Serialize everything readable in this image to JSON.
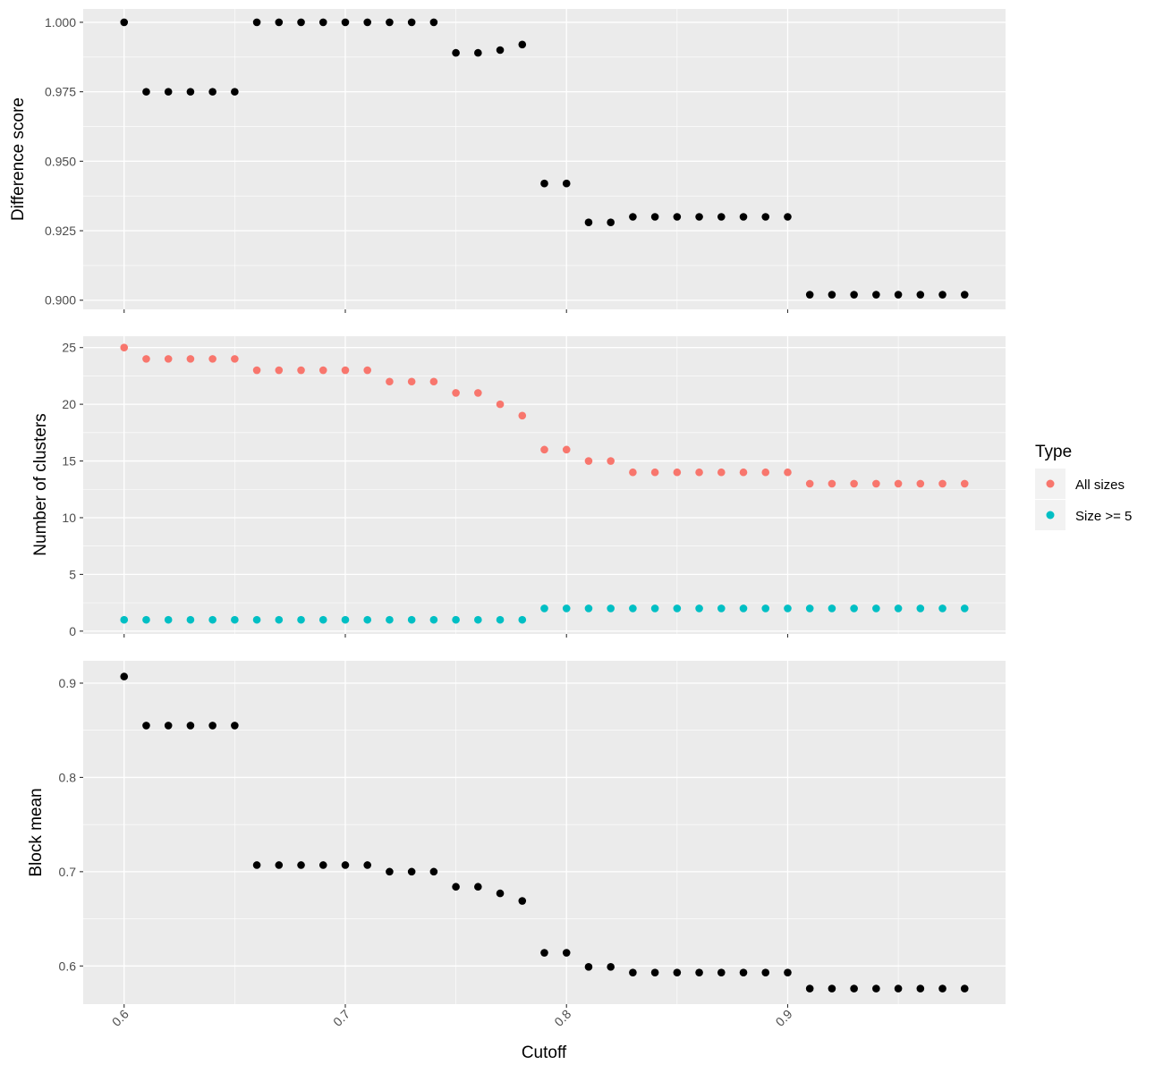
{
  "chart_data": {
    "type": "scatter",
    "x_axis": {
      "label": "Cutoff",
      "ticks": [
        "0.6",
        "0.7",
        "0.8",
        "0.9"
      ],
      "range": [
        0.5815,
        0.9985
      ]
    },
    "x": [
      0.6,
      0.61,
      0.62,
      0.63,
      0.64,
      0.65,
      0.66,
      0.67,
      0.68,
      0.69,
      0.7,
      0.71,
      0.72,
      0.73,
      0.74,
      0.75,
      0.76,
      0.77,
      0.78,
      0.79,
      0.8,
      0.81,
      0.82,
      0.83,
      0.84,
      0.85,
      0.86,
      0.87,
      0.88,
      0.89,
      0.9,
      0.91,
      0.92,
      0.93,
      0.94,
      0.95,
      0.96,
      0.97,
      0.98
    ],
    "panels": [
      {
        "ylabel": "Difference score",
        "ylim": [
          0.8967,
          1.0048
        ],
        "yticks": [
          0.9,
          0.925,
          0.95,
          0.975,
          1.0
        ],
        "ytick_labels": [
          "0.900",
          "0.925",
          "0.950",
          "0.975",
          "1.000"
        ],
        "series": [
          {
            "color": "#000000",
            "values": [
              1.0,
              0.975,
              0.975,
              0.975,
              0.975,
              0.975,
              1.0,
              1.0,
              1.0,
              1.0,
              1.0,
              1.0,
              1.0,
              1.0,
              1.0,
              0.989,
              0.989,
              0.99,
              0.992,
              0.942,
              0.942,
              0.928,
              0.928,
              0.93,
              0.93,
              0.93,
              0.93,
              0.93,
              0.93,
              0.93,
              0.93,
              0.902,
              0.902,
              0.902,
              0.902,
              0.902,
              0.902,
              0.902,
              0.902
            ]
          }
        ]
      },
      {
        "ylabel": "Number of clusters",
        "ylim": [
          -0.25,
          26.0
        ],
        "yticks": [
          0,
          5,
          10,
          15,
          20,
          25
        ],
        "ytick_labels": [
          "0",
          "5",
          "10",
          "15",
          "20",
          "25"
        ],
        "series": [
          {
            "name": "All sizes",
            "color": "#F8766D",
            "values": [
              25,
              24,
              24,
              24,
              24,
              24,
              23,
              23,
              23,
              23,
              23,
              23,
              22,
              22,
              22,
              21,
              21,
              20,
              19,
              16,
              16,
              15,
              15,
              14,
              14,
              14,
              14,
              14,
              14,
              14,
              14,
              13,
              13,
              13,
              13,
              13,
              13,
              13,
              13
            ]
          },
          {
            "name": "Size >= 5",
            "color": "#00BFC4",
            "values": [
              1,
              1,
              1,
              1,
              1,
              1,
              1,
              1,
              1,
              1,
              1,
              1,
              1,
              1,
              1,
              1,
              1,
              1,
              1,
              2,
              2,
              2,
              2,
              2,
              2,
              2,
              2,
              2,
              2,
              2,
              2,
              2,
              2,
              2,
              2,
              2,
              2,
              2,
              2
            ]
          }
        ]
      },
      {
        "ylabel": "Block mean",
        "ylim": [
          0.5595,
          0.9237
        ],
        "yticks": [
          0.6,
          0.7,
          0.8,
          0.9
        ],
        "ytick_labels": [
          "0.6",
          "0.7",
          "0.8",
          "0.9"
        ],
        "series": [
          {
            "color": "#000000",
            "values": [
              0.907,
              0.855,
              0.855,
              0.855,
              0.855,
              0.855,
              0.707,
              0.707,
              0.707,
              0.707,
              0.707,
              0.707,
              0.7,
              0.7,
              0.7,
              0.684,
              0.684,
              0.677,
              0.669,
              0.614,
              0.614,
              0.599,
              0.599,
              0.593,
              0.593,
              0.593,
              0.593,
              0.593,
              0.593,
              0.593,
              0.593,
              0.576,
              0.576,
              0.576,
              0.576,
              0.576,
              0.576,
              0.576,
              0.576
            ]
          }
        ]
      }
    ],
    "legend": {
      "title": "Type",
      "position": "right",
      "entries": [
        {
          "label": "All sizes",
          "color": "#F8766D"
        },
        {
          "label": "Size >= 5",
          "color": "#00BFC4"
        }
      ]
    },
    "grid": true
  }
}
